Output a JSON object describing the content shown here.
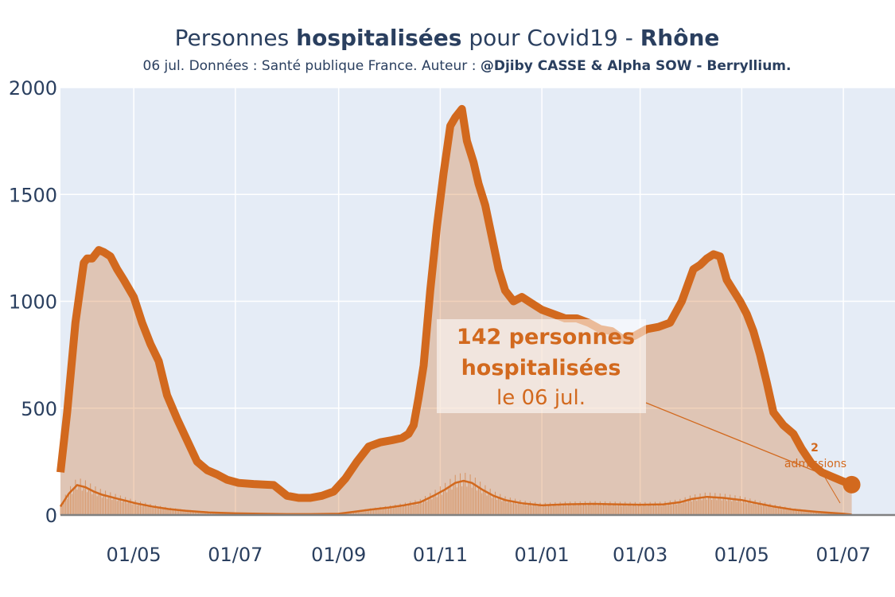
{
  "title": {
    "prefix": "Personnes ",
    "bold1": "hospitalisées",
    "middle": " pour Covid19 - ",
    "bold2": "Rhône"
  },
  "subtitle": {
    "normal": "06 jul. Données : Santé publique France. Auteur : ",
    "bold": "@Djiby CASSE & Alpha SOW - Berryllium."
  },
  "colors": {
    "line": "#d2691e",
    "fill": "rgba(210,105,30,0.3)",
    "plot_bg": "#e5ecf6",
    "grid": "#ffffff",
    "zero_line": "#808080"
  },
  "annotation_main": {
    "line1": "142 personnes",
    "line2": "hospitalisées",
    "line3": "le 06 jul."
  },
  "annotation_admissions": {
    "value": "2",
    "label": "admissions"
  },
  "chart_data": {
    "type": "area",
    "title": "Personnes hospitalisées pour Covid19 - Rhône",
    "xlabel": "",
    "ylabel": "",
    "ylim": [
      0,
      2000
    ],
    "yticks": [
      "0",
      "500",
      "1000",
      "1500",
      "2000"
    ],
    "xticks": [
      "01/05",
      "01/07",
      "01/09",
      "01/11",
      "01/01",
      "01/03",
      "01/05",
      "01/07"
    ],
    "xlim": [
      "2020-03-18",
      "2021-08-01"
    ],
    "grid": true,
    "series": [
      {
        "x": [
          "2020-03-18",
          "2020-03-22",
          "2020-03-27",
          "2020-04-01",
          "2020-04-03",
          "2020-04-06",
          "2020-04-10",
          "2020-04-13",
          "2020-04-17",
          "2020-04-21",
          "2020-04-25",
          "2020-05-01",
          "2020-05-06",
          "2020-05-11",
          "2020-05-16",
          "2020-05-21",
          "2020-05-27",
          "2020-06-02",
          "2020-06-08",
          "2020-06-14",
          "2020-06-20",
          "2020-06-26",
          "2020-07-03",
          "2020-07-12",
          "2020-07-24",
          "2020-08-01",
          "2020-08-08",
          "2020-08-15",
          "2020-08-22",
          "2020-08-29",
          "2020-09-05",
          "2020-09-12",
          "2020-09-19",
          "2020-09-26",
          "2020-10-03",
          "2020-10-09",
          "2020-10-13",
          "2020-10-16",
          "2020-10-19",
          "2020-10-22",
          "2020-10-26",
          "2020-10-30",
          "2020-11-03",
          "2020-11-07",
          "2020-11-10",
          "2020-11-14",
          "2020-11-17",
          "2020-11-21",
          "2020-11-24",
          "2020-11-28",
          "2020-12-02",
          "2020-12-06",
          "2020-12-10",
          "2020-12-15",
          "2020-12-20",
          "2020-12-26",
          "2021-01-01",
          "2021-01-08",
          "2021-01-15",
          "2021-01-22",
          "2021-01-29",
          "2021-02-05",
          "2021-02-12",
          "2021-02-19",
          "2021-02-26",
          "2021-03-05",
          "2021-03-12",
          "2021-03-19",
          "2021-03-26",
          "2021-04-02",
          "2021-04-06",
          "2021-04-10",
          "2021-04-14",
          "2021-04-18",
          "2021-04-22",
          "2021-04-26",
          "2021-04-30",
          "2021-05-04",
          "2021-05-08",
          "2021-05-12",
          "2021-05-16",
          "2021-05-20",
          "2021-05-26",
          "2021-06-01",
          "2021-06-06",
          "2021-06-12",
          "2021-06-18",
          "2021-06-24",
          "2021-06-30",
          "2021-07-06"
        ],
        "y": [
          200,
          480,
          900,
          1180,
          1200,
          1200,
          1240,
          1230,
          1210,
          1150,
          1100,
          1020,
          900,
          800,
          720,
          560,
          450,
          350,
          250,
          210,
          190,
          165,
          150,
          145,
          140,
          90,
          80,
          80,
          90,
          110,
          170,
          250,
          320,
          340,
          350,
          360,
          380,
          420,
          550,
          700,
          1050,
          1350,
          1600,
          1820,
          1860,
          1900,
          1750,
          1650,
          1550,
          1450,
          1300,
          1150,
          1050,
          1000,
          1020,
          990,
          960,
          940,
          920,
          920,
          900,
          870,
          860,
          820,
          840,
          870,
          880,
          900,
          1000,
          1150,
          1170,
          1200,
          1220,
          1210,
          1100,
          1050,
          1000,
          940,
          860,
          750,
          620,
          480,
          420,
          380,
          310,
          240,
          200,
          180,
          160,
          142
        ]
      },
      {
        "name": "admissions",
        "x": [
          "2020-03-18",
          "2020-03-23",
          "2020-03-28",
          "2020-04-02",
          "2020-04-07",
          "2020-04-12",
          "2020-04-17",
          "2020-04-22",
          "2020-04-27",
          "2020-05-02",
          "2020-05-12",
          "2020-05-22",
          "2020-06-01",
          "2020-06-15",
          "2020-07-01",
          "2020-07-15",
          "2020-08-01",
          "2020-08-15",
          "2020-09-01",
          "2020-09-10",
          "2020-09-20",
          "2020-10-01",
          "2020-10-10",
          "2020-10-20",
          "2020-10-28",
          "2020-11-04",
          "2020-11-10",
          "2020-11-15",
          "2020-11-20",
          "2020-11-26",
          "2020-12-03",
          "2020-12-10",
          "2020-12-20",
          "2021-01-01",
          "2021-01-15",
          "2021-02-01",
          "2021-02-15",
          "2021-03-01",
          "2021-03-15",
          "2021-03-25",
          "2021-04-01",
          "2021-04-10",
          "2021-04-20",
          "2021-05-01",
          "2021-05-10",
          "2021-05-20",
          "2021-06-01",
          "2021-06-15",
          "2021-07-01",
          "2021-07-06"
        ],
        "y": [
          40,
          100,
          140,
          130,
          110,
          95,
          85,
          75,
          65,
          55,
          40,
          28,
          20,
          12,
          8,
          6,
          4,
          4,
          6,
          15,
          25,
          35,
          45,
          60,
          90,
          120,
          150,
          160,
          150,
          120,
          90,
          70,
          55,
          45,
          50,
          52,
          50,
          48,
          50,
          60,
          75,
          85,
          80,
          70,
          55,
          40,
          25,
          15,
          6,
          2
        ]
      }
    ]
  }
}
